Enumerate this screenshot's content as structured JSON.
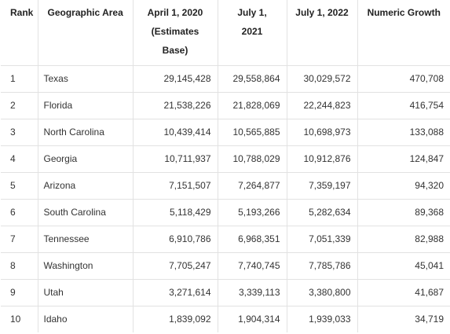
{
  "table": {
    "headers": {
      "rank": "Rank",
      "area": "Geographic Area",
      "april2020": "April 1, 2020 (Estimates Base)",
      "july2021": "July 1, 2021",
      "july2022": "July 1, 2022",
      "growth": "Numeric Growth"
    },
    "rows": [
      {
        "rank": "1",
        "area": "Texas",
        "april2020": "29,145,428",
        "july2021": "29,558,864",
        "july2022": "30,029,572",
        "growth": "470,708"
      },
      {
        "rank": "2",
        "area": "Florida",
        "april2020": "21,538,226",
        "july2021": "21,828,069",
        "july2022": "22,244,823",
        "growth": "416,754"
      },
      {
        "rank": "3",
        "area": "North Carolina",
        "april2020": "10,439,414",
        "july2021": "10,565,885",
        "july2022": "10,698,973",
        "growth": "133,088"
      },
      {
        "rank": "4",
        "area": "Georgia",
        "april2020": "10,711,937",
        "july2021": "10,788,029",
        "july2022": "10,912,876",
        "growth": "124,847"
      },
      {
        "rank": "5",
        "area": "Arizona",
        "april2020": "7,151,507",
        "july2021": "7,264,877",
        "july2022": "7,359,197",
        "growth": "94,320"
      },
      {
        "rank": "6",
        "area": "South Carolina",
        "april2020": "5,118,429",
        "july2021": "5,193,266",
        "july2022": "5,282,634",
        "growth": "89,368"
      },
      {
        "rank": "7",
        "area": "Tennessee",
        "april2020": "6,910,786",
        "july2021": "6,968,351",
        "july2022": "7,051,339",
        "growth": "82,988"
      },
      {
        "rank": "8",
        "area": "Washington",
        "april2020": "7,705,247",
        "july2021": "7,740,745",
        "july2022": "7,785,786",
        "growth": "45,041"
      },
      {
        "rank": "9",
        "area": "Utah",
        "april2020": "3,271,614",
        "july2021": "3,339,113",
        "july2022": "3,380,800",
        "growth": "41,687"
      },
      {
        "rank": "10",
        "area": "Idaho",
        "april2020": "1,839,092",
        "july2021": "1,904,314",
        "july2022": "1,939,033",
        "growth": "34,719"
      }
    ]
  }
}
